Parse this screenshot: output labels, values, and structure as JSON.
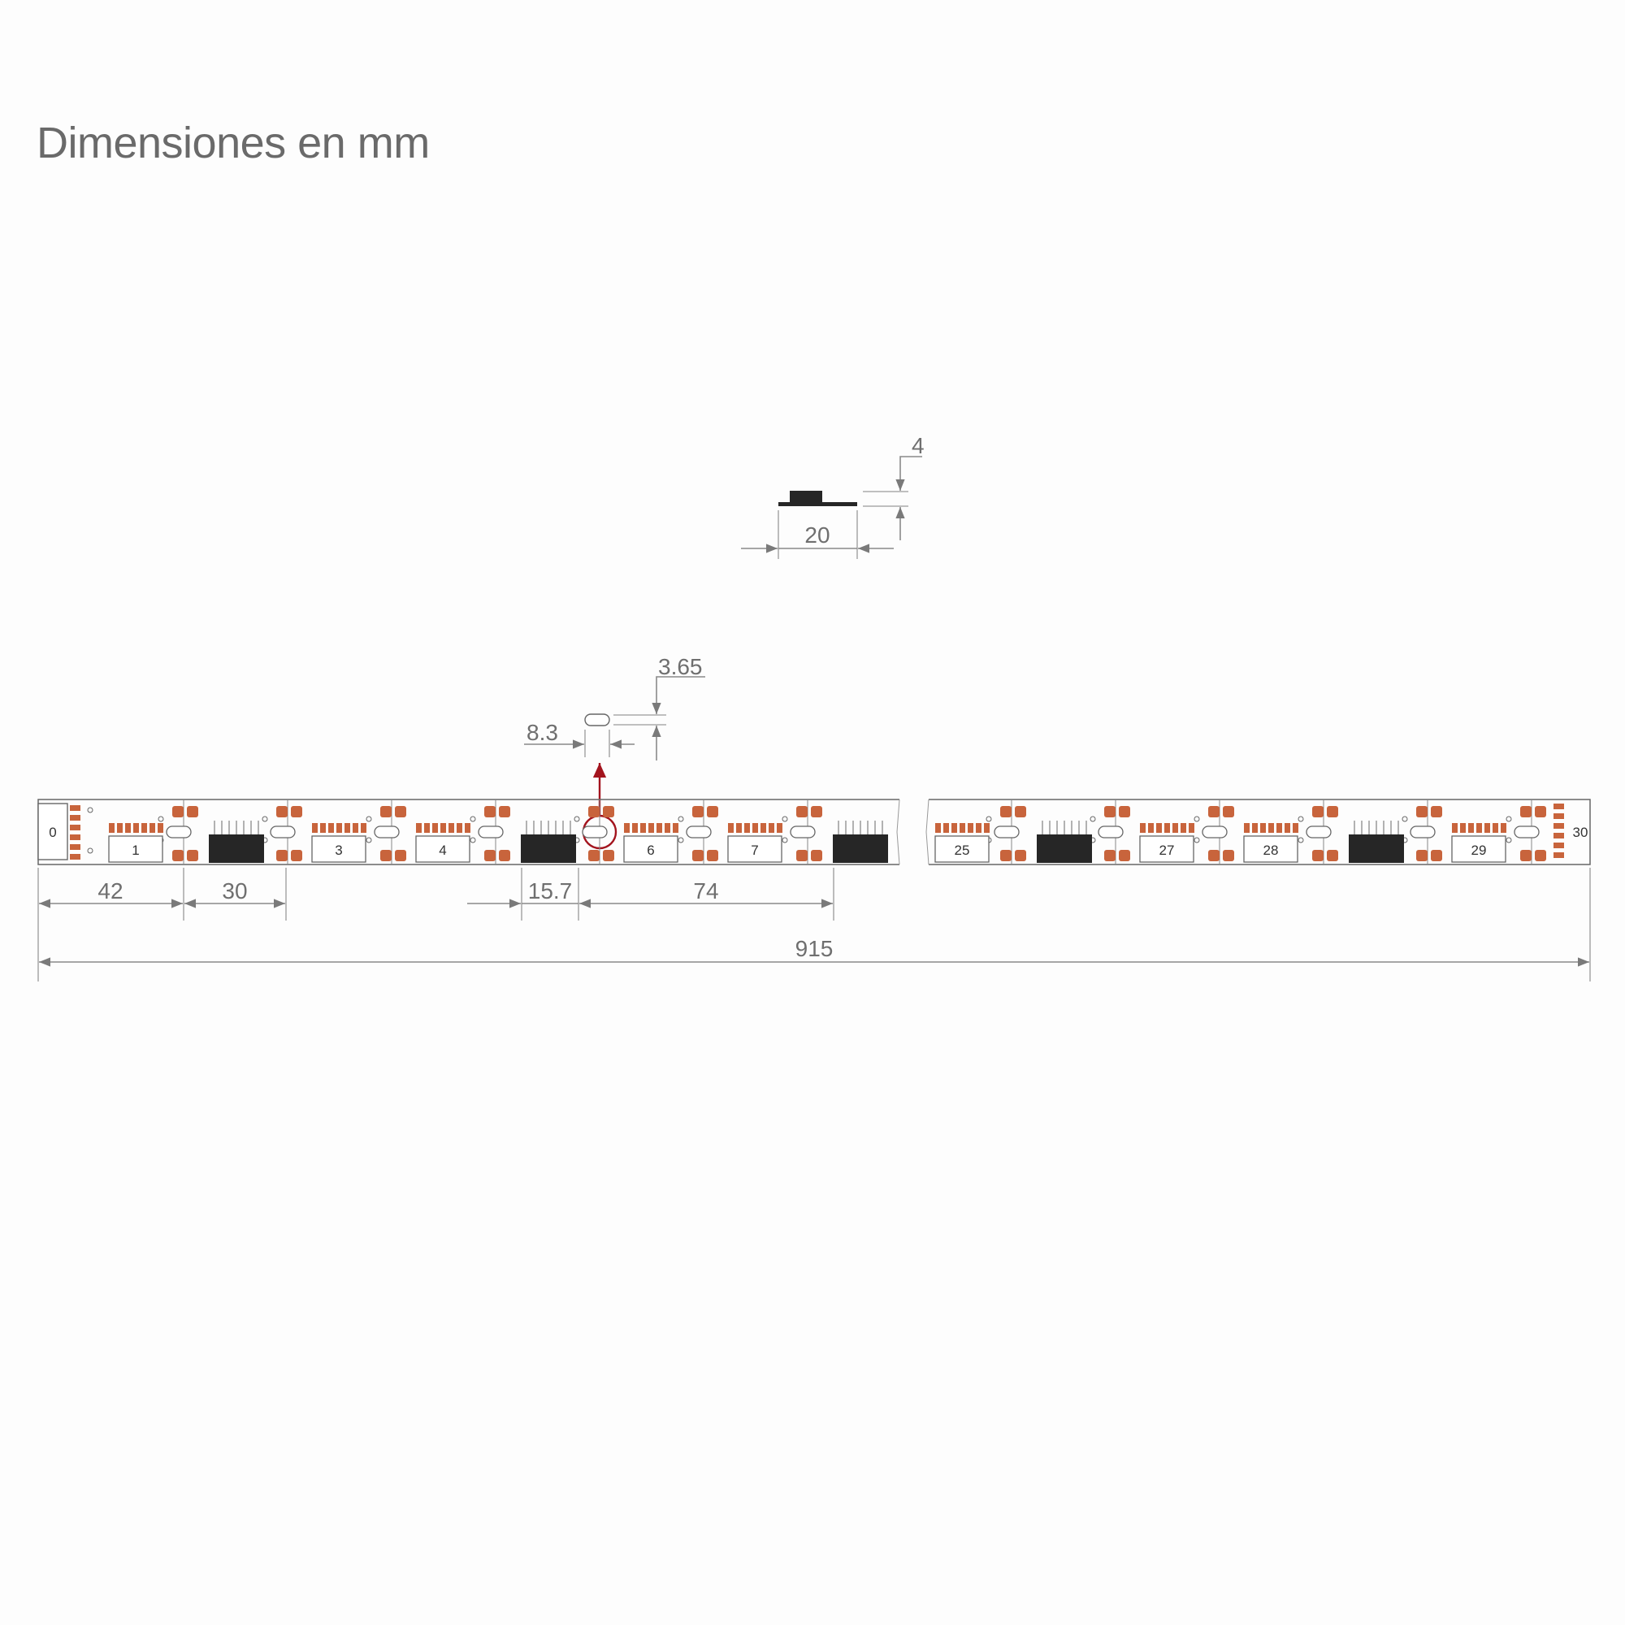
{
  "title": "Dimensiones en mm",
  "colors": {
    "pad": "#c8643c",
    "chip": "#262626",
    "outline": "#666666",
    "dimension": "#8a8a8a",
    "highlight": "#a3141e"
  },
  "cross_section": {
    "width_label": "20",
    "height_label": "4"
  },
  "cut_pad": {
    "width_label": "8.3",
    "height_label": "3.65"
  },
  "strip": {
    "start_label": "0",
    "end_label": "30",
    "left_section_numbers": [
      "1",
      "3",
      "4",
      "6",
      "7"
    ],
    "right_section_numbers": [
      "25",
      "27",
      "28",
      "29"
    ]
  },
  "dimensions": {
    "first_segment": "42",
    "segment_pitch": "30",
    "chip_width": "15.7",
    "group_pitch": "74",
    "total_length": "915"
  }
}
